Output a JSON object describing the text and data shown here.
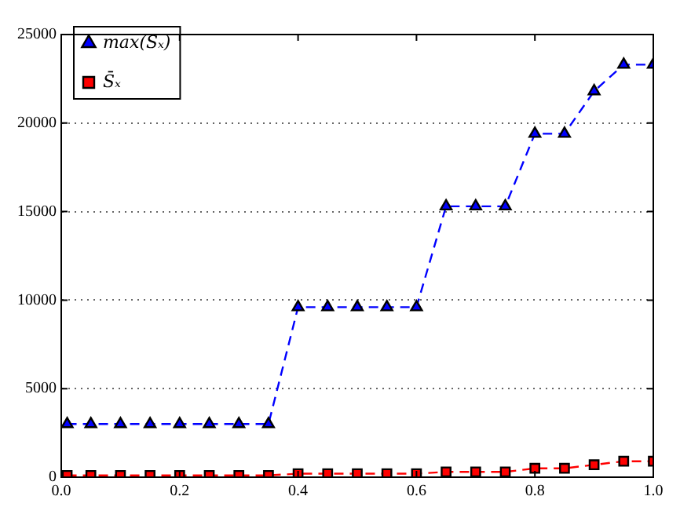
{
  "chart_data": {
    "type": "line",
    "x": [
      0.01,
      0.05,
      0.1,
      0.15,
      0.2,
      0.25,
      0.3,
      0.35,
      0.4,
      0.45,
      0.5,
      0.55,
      0.6,
      0.65,
      0.7,
      0.75,
      0.8,
      0.85,
      0.9,
      0.95,
      1.0
    ],
    "series": [
      {
        "name": "max(Sₓ)",
        "color": "#0000ff",
        "marker": "triangle",
        "values": [
          3000,
          3000,
          3000,
          3000,
          3000,
          3000,
          3000,
          3000,
          9600,
          9600,
          9600,
          9600,
          9600,
          15300,
          15300,
          15300,
          19400,
          19400,
          21800,
          23300,
          23300
        ]
      },
      {
        "name": "S̄ₓ",
        "color": "#ff0000",
        "marker": "square",
        "values": [
          100,
          100,
          100,
          100,
          100,
          100,
          100,
          100,
          200,
          200,
          200,
          200,
          200,
          300,
          300,
          300,
          500,
          500,
          700,
          900,
          900
        ]
      }
    ],
    "xlim": [
      0,
      1
    ],
    "xticks": [
      {
        "value": 0,
        "label": "0.0"
      },
      0.2,
      0.4,
      0.6,
      0.8,
      {
        "value": 1,
        "label": "1.0"
      }
    ],
    "ylim": [
      0,
      25000
    ],
    "yticks": [
      0,
      5000,
      10000,
      15000,
      20000,
      25000
    ],
    "grid": "y",
    "legend": "top left",
    "line_style": "dashed"
  }
}
